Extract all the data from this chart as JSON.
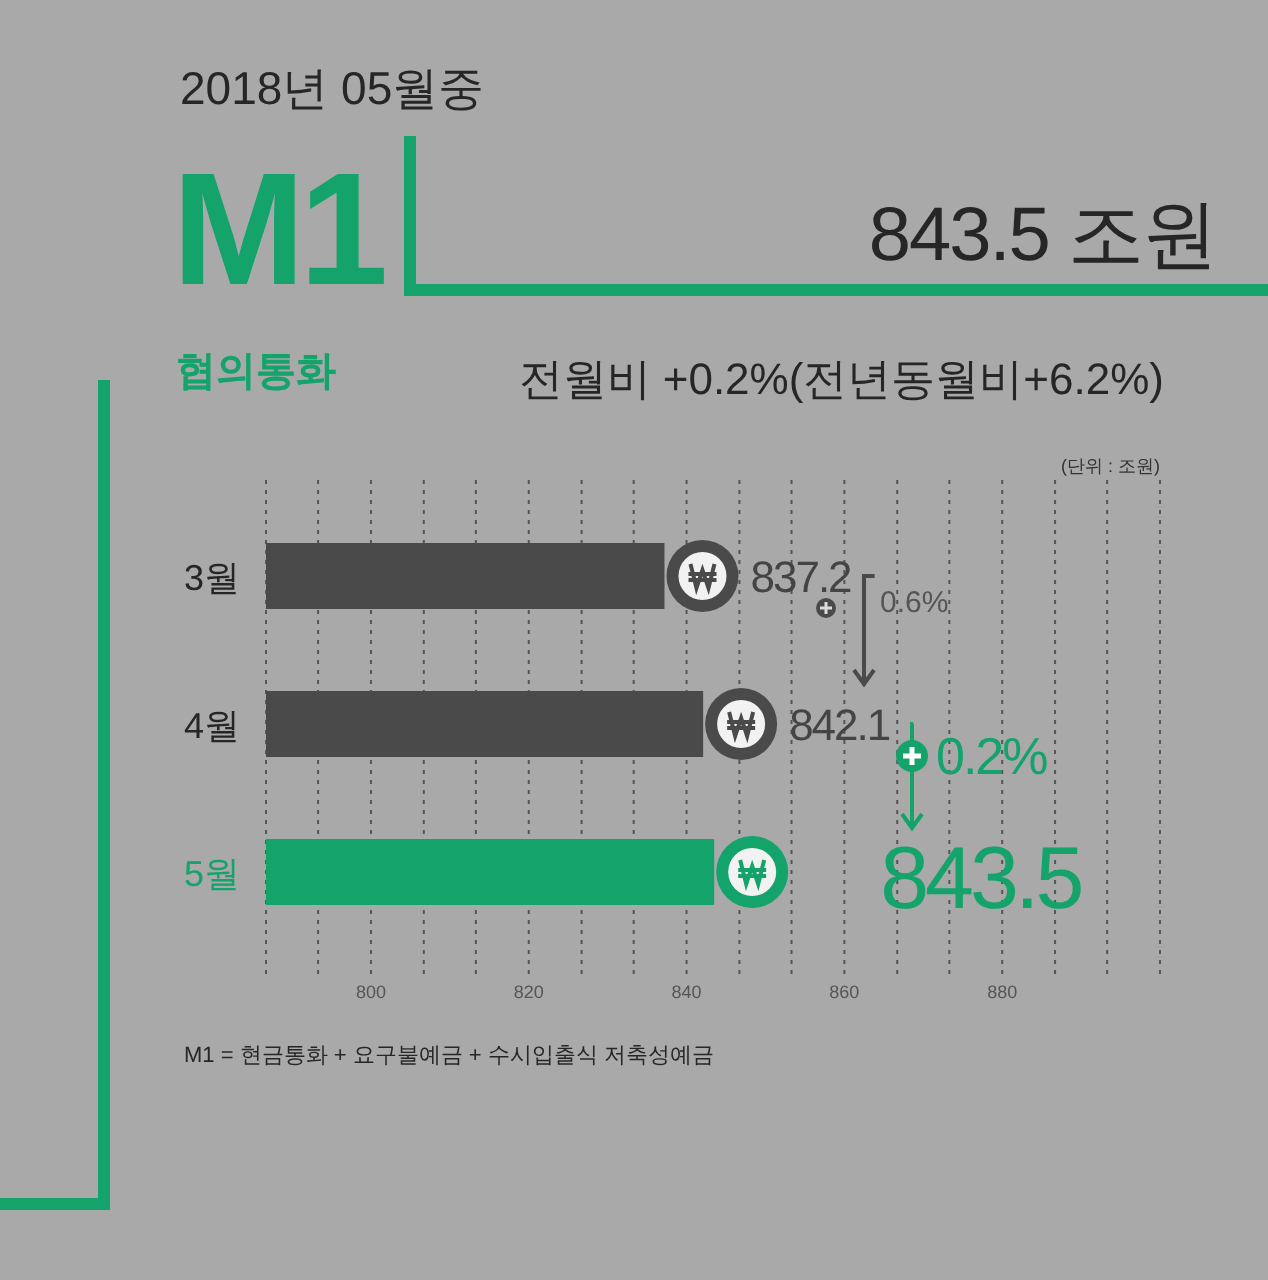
{
  "chart_data": {
    "type": "bar",
    "orientation": "horizontal",
    "title": "2018년 05월중",
    "subtitle": "전월비 +0.2%(전년동월비+6.2%)",
    "annotations": [
      "M1",
      "843.5 조원",
      "협의통화",
      "(단위 : 조원)",
      "0.6%",
      "0.2%",
      "M1 = 현금통화 + 요구불예금 + 수시입출식 저축성예금"
    ],
    "categories": [
      "3월",
      "4월",
      "5월"
    ],
    "values": [
      837.2,
      842.1,
      843.5
    ],
    "colors": [
      "#4a4a4a",
      "#4a4a4a",
      "#13a36b"
    ],
    "data_labels": true,
    "xlim": [
      786.7,
      900
    ],
    "xticks": [
      {
        "value": 786.7,
        "label": null
      },
      {
        "value": 793.3,
        "label": null
      },
      800,
      {
        "value": 806.7,
        "label": null
      },
      {
        "value": 813.3,
        "label": null
      },
      820,
      {
        "value": 826.7,
        "label": null
      },
      {
        "value": 833.3,
        "label": null
      },
      840,
      {
        "value": 846.7,
        "label": null
      },
      {
        "value": 853.3,
        "label": null
      },
      860,
      {
        "value": 866.7,
        "label": null
      },
      {
        "value": 873.3,
        "label": null
      },
      880,
      {
        "value": 886.7,
        "label": null
      },
      {
        "value": 893.3,
        "label": null
      },
      {
        "value": 900,
        "label": null
      }
    ],
    "grid": "x"
  }
}
